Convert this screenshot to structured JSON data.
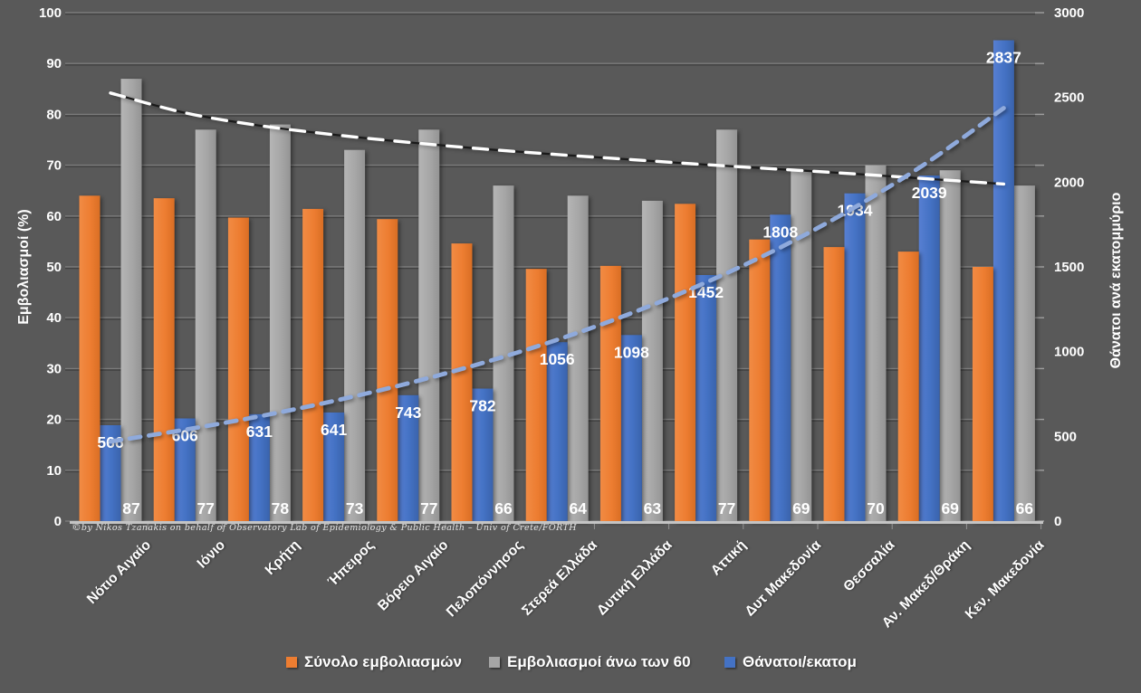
{
  "page": {
    "background": "#595959"
  },
  "watermark": "©by Nikos Tzanakis on behalf of Observatory Lab of Epidemiology & Public Health – Univ of Crete/FORTH",
  "chart_data": {
    "type": "bar",
    "subtype": "grouped bars with two trendlines, dual axes",
    "grid": true,
    "legend_position": "bottom",
    "categories": [
      "Νότιο Αιγαίο",
      "Ιόνιο",
      "Κρήτη",
      "Ήπειρος",
      "Βόρειο Αιγαίο",
      "Πελοπόννησος",
      "Στερεά Ελλάδα",
      "Δυτική Ελλάδα",
      "Αττική",
      "Δυτ Μακεδονία",
      "Θεσσαλία",
      "Αν. Μακεδ/Θράκη",
      "Κεν. Μακεδονία"
    ],
    "left_axis": {
      "title": "Εμβολιασμοί (%)",
      "min": 0,
      "max": 100,
      "step": 10
    },
    "right_axis": {
      "title": "Θάνατοι ανά εκατομμύριο",
      "min": 0,
      "max": 3000,
      "step": 500
    },
    "series": [
      {
        "name": "Σύνολο εμβολιασμών",
        "axis": "left",
        "color": "#ED7D31",
        "values": [
          64,
          63.5,
          59.7,
          61.4,
          59.4,
          54.6,
          49.6,
          50.2,
          62.4,
          55.4,
          53.9,
          53,
          50
        ],
        "data_labels": "none"
      },
      {
        "name": "Εμβολιασμοί άνω των 60",
        "axis": "left",
        "color": "#A6A6A6",
        "values": [
          87,
          77,
          78,
          73,
          77,
          66,
          64,
          63,
          77,
          69,
          70,
          69,
          66
        ],
        "data_labels": "inside-base",
        "labels": [
          "87",
          "77",
          "78",
          "73",
          "77",
          "66",
          "64",
          "63",
          "77",
          "69",
          "70",
          "69",
          "66"
        ]
      },
      {
        "name": "Θάνατοι/εκατομ",
        "axis": "right",
        "color": "#4472C4",
        "values": [
          566,
          606,
          631,
          641,
          743,
          782,
          1056,
          1098,
          1452,
          1808,
          1934,
          2039,
          2837
        ],
        "data_labels": "inside-end",
        "labels": [
          "566",
          "606",
          "631",
          "641",
          "743",
          "782",
          "1056",
          "1098",
          "1452",
          "1808",
          "1934",
          "2039",
          "2837"
        ]
      }
    ],
    "trendlines": [
      {
        "for_series": "Εμβολιασμοί άνω των 60",
        "axis": "left",
        "style": "black-with-white-dashes",
        "values": [
          84.2,
          80.3,
          77.8,
          76.0,
          74.5,
          73.2,
          72.1,
          71.1,
          70.1,
          69.2,
          68.3,
          67.3,
          66.3
        ]
      },
      {
        "for_series": "Θάνατοι/εκατομ",
        "axis": "right",
        "style": "light-blue-dashed",
        "color": "#8FAADC",
        "values": [
          470,
          539,
          618,
          709,
          813,
          933,
          1070,
          1227,
          1408,
          1615,
          1852,
          2124,
          2437
        ]
      }
    ]
  }
}
